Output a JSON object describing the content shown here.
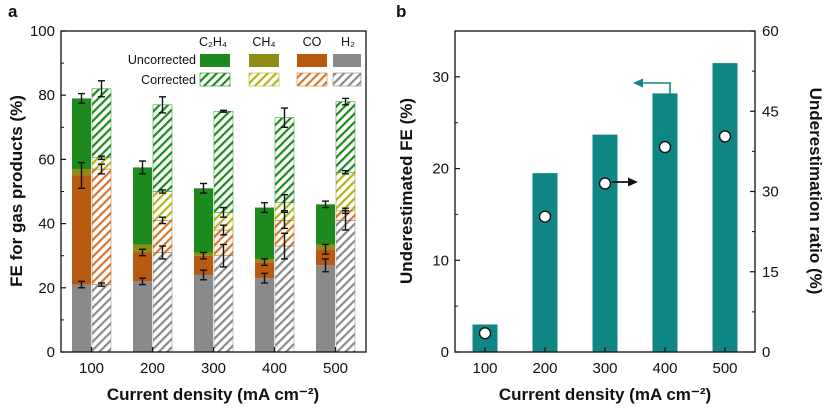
{
  "colors": {
    "C2H4": "#1e8a1e",
    "CH4": "#8c8c16",
    "CO": "#b85a12",
    "H2": "#8a8a8a",
    "teal": "#0e8784"
  },
  "chart_data": [
    {
      "panel": "a",
      "type": "bar",
      "stacked": true,
      "categories": [
        "100",
        "200",
        "300",
        "400",
        "500"
      ],
      "xlabel": "Current density (mA cm⁻²)",
      "ylabel": "FE for gas products   (%)",
      "ylim": [
        0,
        100
      ],
      "yticks": [
        "0",
        "20",
        "40",
        "60",
        "80",
        "100"
      ],
      "legend": {
        "rows": [
          "Uncorrected",
          "Corrected"
        ],
        "columns": [
          "C₂H₄",
          "CH₄",
          "CO",
          "H₂"
        ]
      },
      "series": [
        {
          "name": "H₂",
          "group": "Uncorrected",
          "values": [
            21,
            22,
            24,
            23,
            27
          ],
          "err": [
            1,
            1,
            1.5,
            1.5,
            2
          ]
        },
        {
          "name": "CO",
          "group": "Uncorrected",
          "values": [
            34,
            9,
            6,
            5,
            5
          ],
          "err": [
            4,
            1,
            1,
            1,
            1.5
          ]
        },
        {
          "name": "CH₄",
          "group": "Uncorrected",
          "values": [
            2,
            2.5,
            1,
            1,
            1.5
          ],
          "err": [
            0,
            0,
            0,
            0,
            0
          ]
        },
        {
          "name": "C₂H₄",
          "group": "Uncorrected",
          "values": [
            22,
            24,
            20,
            16,
            12.5
          ],
          "err": [
            1.5,
            2,
            1.5,
            1.5,
            1
          ]
        },
        {
          "name": "H₂",
          "group": "Corrected",
          "values": [
            21,
            31,
            30,
            33,
            41
          ],
          "err": [
            0.5,
            2,
            3.5,
            4,
            3
          ]
        },
        {
          "name": "CO",
          "group": "Corrected",
          "values": [
            36,
            10,
            8,
            8,
            3
          ],
          "err": [
            1.5,
            1,
            1.5,
            2.5,
            0.8
          ]
        },
        {
          "name": "CH₄",
          "group": "Corrected",
          "values": [
            3.5,
            9,
            5.5,
            5.5,
            12
          ],
          "err": [
            0.5,
            0.5,
            1.5,
            2.5,
            0.5
          ]
        },
        {
          "name": "C₂H₄",
          "group": "Corrected",
          "values": [
            21.5,
            27,
            31.5,
            26.5,
            22
          ],
          "err": [
            2.5,
            2.5,
            0.3,
            3,
            1
          ]
        }
      ]
    },
    {
      "panel": "b",
      "type": "bar",
      "categories": [
        "100",
        "200",
        "300",
        "400",
        "500"
      ],
      "xlabel": "Current density (mA cm⁻²)",
      "ylabel": "Underestimated FE   (%)",
      "ylim": [
        0,
        35
      ],
      "yticks": [
        "0",
        "10",
        "20",
        "30"
      ],
      "y2label": "Underestimation ratio   (%)",
      "y2lim": [
        0,
        60
      ],
      "y2ticks": [
        "0",
        "15",
        "30",
        "45",
        "60"
      ],
      "series": [
        {
          "type": "bar",
          "axis": "left",
          "values": [
            3,
            19.5,
            23.7,
            28.2,
            31.5
          ]
        },
        {
          "type": "scatter",
          "axis": "right",
          "values": [
            3.5,
            25.3,
            31.5,
            38.3,
            40.3
          ]
        }
      ]
    }
  ]
}
